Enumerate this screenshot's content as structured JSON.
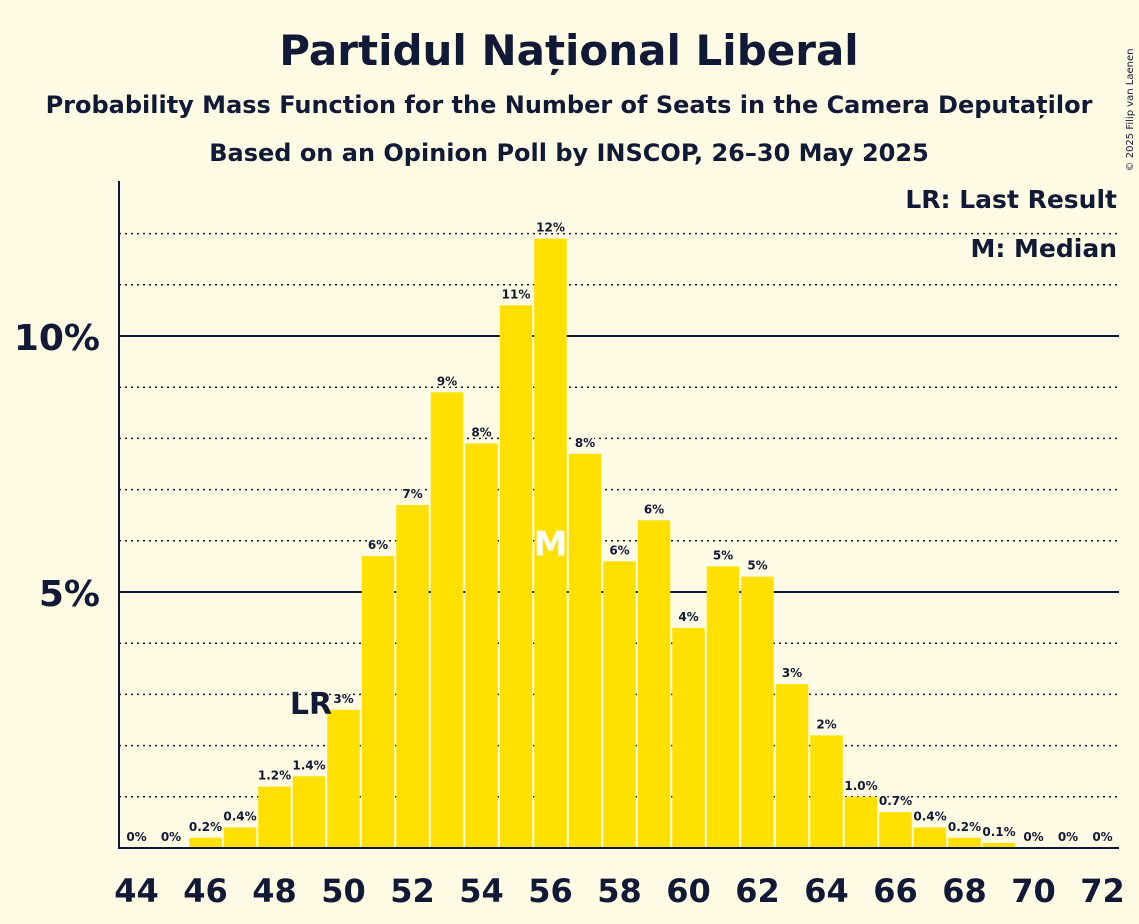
{
  "chart_data": {
    "type": "bar",
    "title": "Partidul Național Liberal",
    "subtitle": "Probability Mass Function for the Number of Seats in the Camera Deputaților",
    "subtitle2": "Based on an Opinion Poll by INSCOP, 26–30 May 2025",
    "copyright": "© 2025 Filip van Laenen",
    "legend": {
      "last_result": "LR: Last Result",
      "median": "M: Median",
      "position": "top-right"
    },
    "markers": {
      "last_result_label": "LR",
      "last_result_seat": 49,
      "median_label": "M",
      "median_seat": 56
    },
    "categories": [
      44,
      45,
      46,
      47,
      48,
      49,
      50,
      51,
      52,
      53,
      54,
      55,
      56,
      57,
      58,
      59,
      60,
      61,
      62,
      63,
      64,
      65,
      66,
      67,
      68,
      69,
      70,
      71,
      72
    ],
    "values": [
      0,
      0,
      0.2,
      0.4,
      1.2,
      1.4,
      2.7,
      5.7,
      6.7,
      8.9,
      7.9,
      10.6,
      11.9,
      7.7,
      5.6,
      6.4,
      4.3,
      5.5,
      5.3,
      3.2,
      2.2,
      1.0,
      0.7,
      0.4,
      0.2,
      0.1,
      0,
      0,
      0
    ],
    "data_labels": [
      "0%",
      "0%",
      "0.2%",
      "0.4%",
      "1.2%",
      "1.4%",
      "3%",
      "6%",
      "7%",
      "9%",
      "8%",
      "11%",
      "12%",
      "8%",
      "6%",
      "6%",
      "4%",
      "5%",
      "5%",
      "3%",
      "2%",
      "1.0%",
      "0.7%",
      "0.4%",
      "0.2%",
      "0.1%",
      "0%",
      "0%",
      "0%"
    ],
    "x_tick_labels": [
      "44",
      "46",
      "48",
      "50",
      "52",
      "54",
      "56",
      "58",
      "60",
      "62",
      "64",
      "66",
      "68",
      "70",
      "72"
    ],
    "y_tick_labels": [
      {
        "value": 5,
        "label": "5%"
      },
      {
        "value": 10,
        "label": "10%"
      }
    ],
    "ylim": [
      0,
      13
    ],
    "grid": "dotted every 1%, solid at 5% and 10%",
    "colors": {
      "bar": "#FFE000",
      "background": "#FFFBE5",
      "text": "#101935"
    }
  }
}
